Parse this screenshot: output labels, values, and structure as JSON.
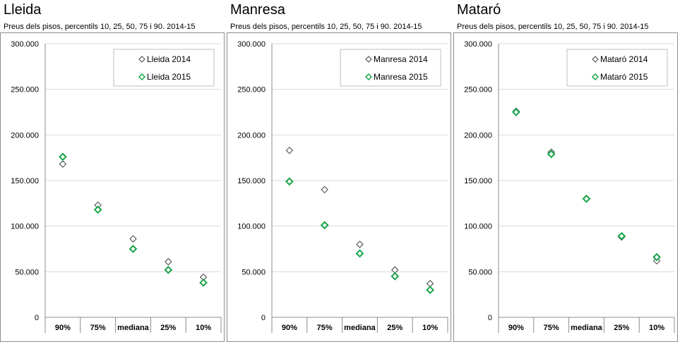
{
  "chart_data": [
    {
      "type": "scatter",
      "title": "Lleida",
      "subtitle": "Preus dels pisos, percentils 10, 25, 50, 75 i 90. 2014-15",
      "categories": [
        "90%",
        "75%",
        "mediana",
        "25%",
        "10%"
      ],
      "y_ticks": [
        "300.000",
        "250.000",
        "200.000",
        "150.000",
        "100.000",
        "50.000",
        "0"
      ],
      "ylim": [
        0,
        300000
      ],
      "grid": true,
      "legend_position": "top-right",
      "series": [
        {
          "name": "Lleida 2014",
          "color": "#404040",
          "values": [
            168000,
            123000,
            86000,
            61000,
            44000
          ]
        },
        {
          "name": "Lleida 2015",
          "color": "#1aa64a",
          "values": [
            176000,
            118000,
            75000,
            52000,
            38000
          ]
        }
      ]
    },
    {
      "type": "scatter",
      "title": "Manresa",
      "subtitle": "Preus dels pisos, percentils 10, 25, 50, 75 i 90. 2014-15",
      "categories": [
        "90%",
        "75%",
        "mediana",
        "25%",
        "10%"
      ],
      "y_ticks": [
        "300.000",
        "250.000",
        "200.000",
        "150.000",
        "100.000",
        "50.000",
        "0"
      ],
      "ylim": [
        0,
        300000
      ],
      "grid": true,
      "legend_position": "top-right",
      "series": [
        {
          "name": "Manresa 2014",
          "color": "#404040",
          "values": [
            183000,
            140000,
            80000,
            52000,
            37000
          ]
        },
        {
          "name": "Manresa 2015",
          "color": "#1aa64a",
          "values": [
            149000,
            101000,
            70000,
            45000,
            30000
          ]
        }
      ]
    },
    {
      "type": "scatter",
      "title": "Mataró",
      "subtitle": "Preus dels pisos, percentils 10, 25, 50, 75 i 90. 2014-15",
      "categories": [
        "90%",
        "75%",
        "mediana",
        "25%",
        "10%"
      ],
      "y_ticks": [
        "300.000",
        "250.000",
        "200.000",
        "150.000",
        "100.000",
        "50.000",
        "0"
      ],
      "ylim": [
        0,
        300000
      ],
      "grid": true,
      "legend_position": "top-right",
      "series": [
        {
          "name": "Mataró 2014",
          "color": "#404040",
          "values": [
            226000,
            181000,
            130000,
            88000,
            62000
          ]
        },
        {
          "name": "Mataró 2015",
          "color": "#1aa64a",
          "values": [
            225000,
            179000,
            130000,
            89000,
            66000
          ]
        }
      ]
    }
  ]
}
